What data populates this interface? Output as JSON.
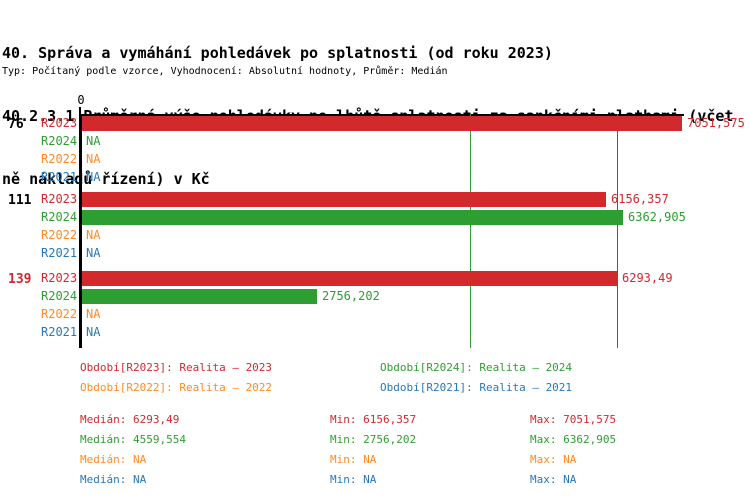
{
  "title": {
    "line1": "40. Správa a vymáhání pohledávek po splatnosti (od roku 2023)",
    "line2": "40.2.3.1 Průměrná výše pohledávky po lhůtě splatnosti za sankčními platbami (včet",
    "line3": "ně nákladů řízení) v Kč",
    "meta": "Typ: Počítaný podle vzorce, Vyhodnocení: Absolutní hodnoty, Průměr: Medián"
  },
  "chart_data": {
    "type": "bar",
    "orientation": "horizontal",
    "origin_label": "0",
    "x_max": 7051.575,
    "grid": false,
    "series_colors": {
      "R2023": "#d2292d",
      "R2024": "#2e9e32",
      "R2022": "#ff8a1e",
      "R2021": "#2878b8"
    },
    "reference_lines": [
      {
        "name": "median-R2024",
        "value": 4559.554,
        "color": "#2e9e32"
      },
      {
        "name": "median-R2023",
        "value": 6293.49,
        "color": "#d2292d"
      }
    ],
    "groups": [
      {
        "label": "76",
        "label_color": "#000000",
        "rows": [
          {
            "series": "R2023",
            "value": 7051.575,
            "display": "7051,575"
          },
          {
            "series": "R2024",
            "value": null,
            "display": "NA"
          },
          {
            "series": "R2022",
            "value": null,
            "display": "NA"
          },
          {
            "series": "R2021",
            "value": null,
            "display": "NA"
          }
        ]
      },
      {
        "label": "111",
        "label_color": "#000000",
        "rows": [
          {
            "series": "R2023",
            "value": 6156.357,
            "display": "6156,357"
          },
          {
            "series": "R2024",
            "value": 6362.905,
            "display": "6362,905"
          },
          {
            "series": "R2022",
            "value": null,
            "display": "NA"
          },
          {
            "series": "R2021",
            "value": null,
            "display": "NA"
          }
        ]
      },
      {
        "label": "139",
        "label_color": "#d2292d",
        "rows": [
          {
            "series": "R2023",
            "value": 6293.49,
            "display": "6293,49"
          },
          {
            "series": "R2024",
            "value": 2756.202,
            "display": "2756,202"
          },
          {
            "series": "R2022",
            "value": null,
            "display": "NA"
          },
          {
            "series": "R2021",
            "value": null,
            "display": "NA"
          }
        ]
      }
    ]
  },
  "legend": {
    "items": [
      {
        "label": "Období[R2023]: Realita – 2023",
        "color": "#d2292d"
      },
      {
        "label": "Období[R2024]: Realita – 2024",
        "color": "#2e9e32"
      },
      {
        "label": "Období[R2022]: Realita – 2022",
        "color": "#ff8a1e"
      },
      {
        "label": "Období[R2021]: Realita – 2021",
        "color": "#2878b8"
      }
    ]
  },
  "stats": {
    "median_label": "Medián",
    "min_label": "Min",
    "max_label": "Max",
    "rows": [
      {
        "color": "#d2292d",
        "median": "6293,49",
        "min": "6156,357",
        "max": "7051,575"
      },
      {
        "color": "#2e9e32",
        "median": "4559,554",
        "min": "2756,202",
        "max": "6362,905"
      },
      {
        "color": "#ff8a1e",
        "median": "NA",
        "min": "NA",
        "max": "NA"
      },
      {
        "color": "#2878b8",
        "median": "NA",
        "min": "NA",
        "max": "NA"
      }
    ]
  }
}
